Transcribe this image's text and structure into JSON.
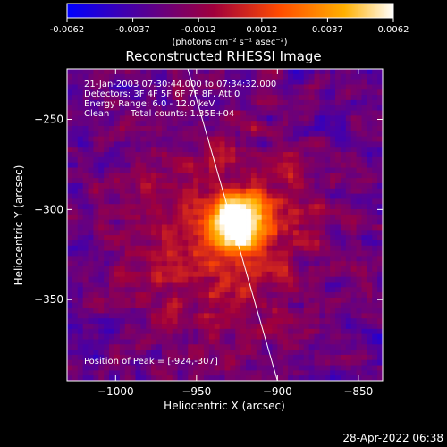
{
  "chart_data": {
    "type": "heatmap",
    "title": "Reconstructed RHESSI Image",
    "xlabel": "Heliocentric X (arcsec)",
    "ylabel": "Heliocentric Y (arcsec)",
    "x_ticks": [
      "-1000",
      "-950",
      "-900",
      "-850"
    ],
    "y_ticks": [
      "-250",
      "-300",
      "-350"
    ],
    "x_tick_values": [
      -1000,
      -950,
      -900,
      -850
    ],
    "y_tick_values": [
      -250,
      -300,
      -350
    ],
    "xlim": [
      -1030,
      -835
    ],
    "ylim": [
      -395,
      -222
    ],
    "colorbar": {
      "label": "(photons cm⁻² s⁻¹ asec⁻²)",
      "ticks": [
        "-0.0062",
        "-0.0037",
        "-0.0012",
        "0.0012",
        "0.0037",
        "0.0062"
      ],
      "tick_values": [
        -0.0062,
        -0.0037,
        -0.0012,
        0.0012,
        0.0037,
        0.0062
      ],
      "range": [
        -0.0062,
        0.0062
      ],
      "colors": [
        "#0000ff",
        "#5a008f",
        "#a0003c",
        "#ff4b00",
        "#ffb000",
        "#ffffff"
      ]
    },
    "annotations": {
      "time": "21-Jan-2003 07:30:44.000 to 07:34:32.000",
      "detectors": "Detectors: 3F 4F 5F 6F 7F 8F, Att 0",
      "energy": "Energy Range: 6.0 - 12.0 keV",
      "method": "Clean",
      "counts": "Total counts: 1.35E+04",
      "peak": "Position of Peak = [-924,-307]"
    },
    "peak": {
      "x": -924,
      "y": -307
    },
    "limb_line": {
      "from": {
        "x": -956,
        "y": -220
      },
      "to": {
        "x": -900,
        "y": -395
      }
    }
  },
  "footer": {
    "timestamp": "28-Apr-2022 06:38"
  }
}
